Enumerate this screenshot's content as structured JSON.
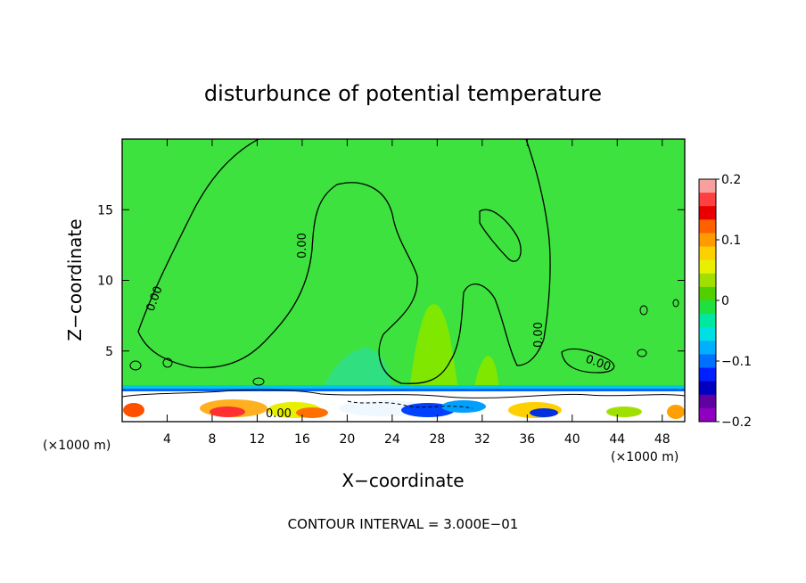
{
  "chart_data": {
    "type": "heatmap",
    "title": "disturbunce of potential temperature",
    "xlabel": "X−coordinate",
    "ylabel": "Z−coordinate",
    "x_unit_left": "(×1000 m)",
    "x_unit_right": "(×1000 m)",
    "xlim": [
      0,
      50
    ],
    "ylim": [
      0,
      20
    ],
    "xticks": [
      4,
      8,
      12,
      16,
      20,
      24,
      28,
      32,
      36,
      40,
      44,
      48
    ],
    "yticks": [
      5,
      10,
      15
    ],
    "contour_label": "0.00",
    "footer": "CONTOUR INTERVAL = 3.000E−01",
    "colorbar": {
      "range": [
        -0.2,
        0.2
      ],
      "tick_values": [
        0.2,
        0.1,
        0,
        -0.1,
        -0.2
      ],
      "tick_labels": [
        "0.2",
        "0.1",
        "0",
        "−0.1",
        "−0.2"
      ],
      "colors": [
        "#f8a0a0",
        "#ff4040",
        "#e80000",
        "#ff6000",
        "#ff9a00",
        "#ffd000",
        "#e8f000",
        "#a0e000",
        "#50d000",
        "#20e040",
        "#00e8a0",
        "#00e0e0",
        "#00b0ff",
        "#0070ff",
        "#0020ff",
        "#0000c0",
        "#6000a0",
        "#9000c0"
      ]
    },
    "background_value": 0.02
  }
}
